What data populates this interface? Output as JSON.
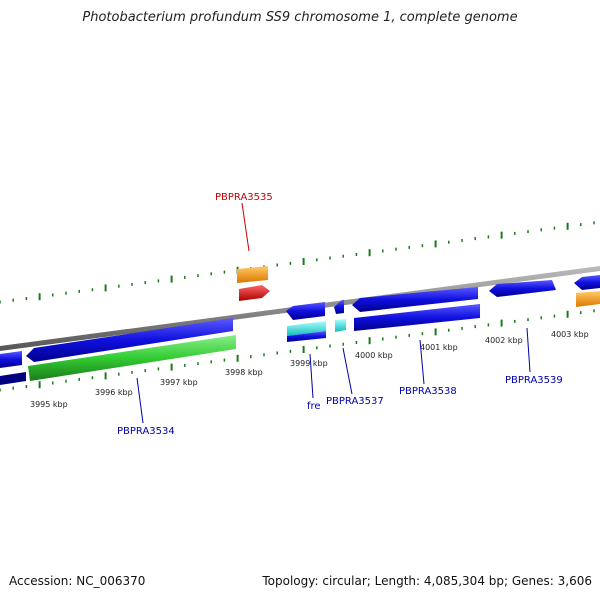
{
  "title": "Photobacterium profundum SS9 chromosome 1, complete genome",
  "footer": {
    "accession": "Accession: NC_006370",
    "summary": "Topology: circular; Length: 4,085,304 bp; Genes: 3,606"
  },
  "scale_labels": [
    "3995 kbp",
    "3996 kbp",
    "3997 kbp",
    "3998 kbp",
    "3999 kbp",
    "4000 kbp",
    "4001 kbp",
    "4002 kbp",
    "4003 kbp"
  ],
  "gene_labels": [
    "PBPRA3535",
    "PBPRA3534",
    "fre",
    "PBPRA3537",
    "PBPRA3538",
    "PBPRA3539"
  ],
  "colors": {
    "backbone": "#8a8a8a",
    "ticks": "#1a7a1a",
    "forward": "#1010e0",
    "reverse_green": "#33cc33",
    "cyan": "#22dddd",
    "orange": "#ff9900",
    "red": "#ee0000",
    "navy": "#000080",
    "label_blue": "#0000aa",
    "label_red": "#cc0000"
  }
}
